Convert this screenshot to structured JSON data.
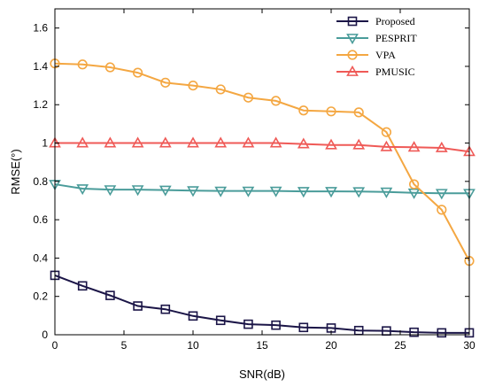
{
  "chart_data": {
    "type": "line",
    "xlabel": "SNR(dB)",
    "ylabel": "RMSE(°)",
    "xlim": [
      0,
      30
    ],
    "ylim": [
      0,
      1.7
    ],
    "xticks": [
      0,
      5,
      10,
      15,
      20,
      25,
      30
    ],
    "yticks": [
      0,
      0.2,
      0.4,
      0.6,
      0.8,
      1,
      1.2,
      1.4,
      1.6
    ],
    "xtick_labels": [
      "0",
      "5",
      "10",
      "15",
      "20",
      "25",
      "30"
    ],
    "ytick_labels": [
      "0",
      "0.2",
      "0.4",
      "0.6",
      "0.8",
      "1",
      "1.2",
      "1.4",
      "1.6"
    ],
    "grid": false,
    "legend_position": "top-right",
    "x": [
      0,
      2,
      4,
      6,
      8,
      10,
      12,
      14,
      16,
      18,
      20,
      22,
      24,
      26,
      28,
      30
    ],
    "series": [
      {
        "name": "Proposed",
        "color": "#1b1547",
        "marker": "square",
        "values": [
          0.31,
          0.255,
          0.205,
          0.15,
          0.133,
          0.098,
          0.075,
          0.055,
          0.05,
          0.038,
          0.035,
          0.022,
          0.02,
          0.013,
          0.01,
          0.01
        ]
      },
      {
        "name": "PESPRIT",
        "color": "#4a9c9a",
        "marker": "triangle-down",
        "values": [
          0.785,
          0.762,
          0.757,
          0.757,
          0.755,
          0.752,
          0.75,
          0.75,
          0.75,
          0.748,
          0.748,
          0.747,
          0.745,
          0.74,
          0.738,
          0.738
        ]
      },
      {
        "name": "VPA",
        "color": "#f4a742",
        "marker": "circle",
        "values": [
          1.415,
          1.41,
          1.395,
          1.367,
          1.315,
          1.3,
          1.28,
          1.237,
          1.22,
          1.17,
          1.165,
          1.16,
          1.057,
          0.785,
          0.652,
          0.385
        ]
      },
      {
        "name": "PMUSIC",
        "color": "#ef5a57",
        "marker": "triangle-up",
        "values": [
          1.0,
          1.0,
          1.0,
          1.0,
          1.0,
          1.0,
          1.0,
          1.0,
          1.0,
          0.995,
          0.99,
          0.99,
          0.98,
          0.978,
          0.975,
          0.955
        ]
      }
    ]
  }
}
